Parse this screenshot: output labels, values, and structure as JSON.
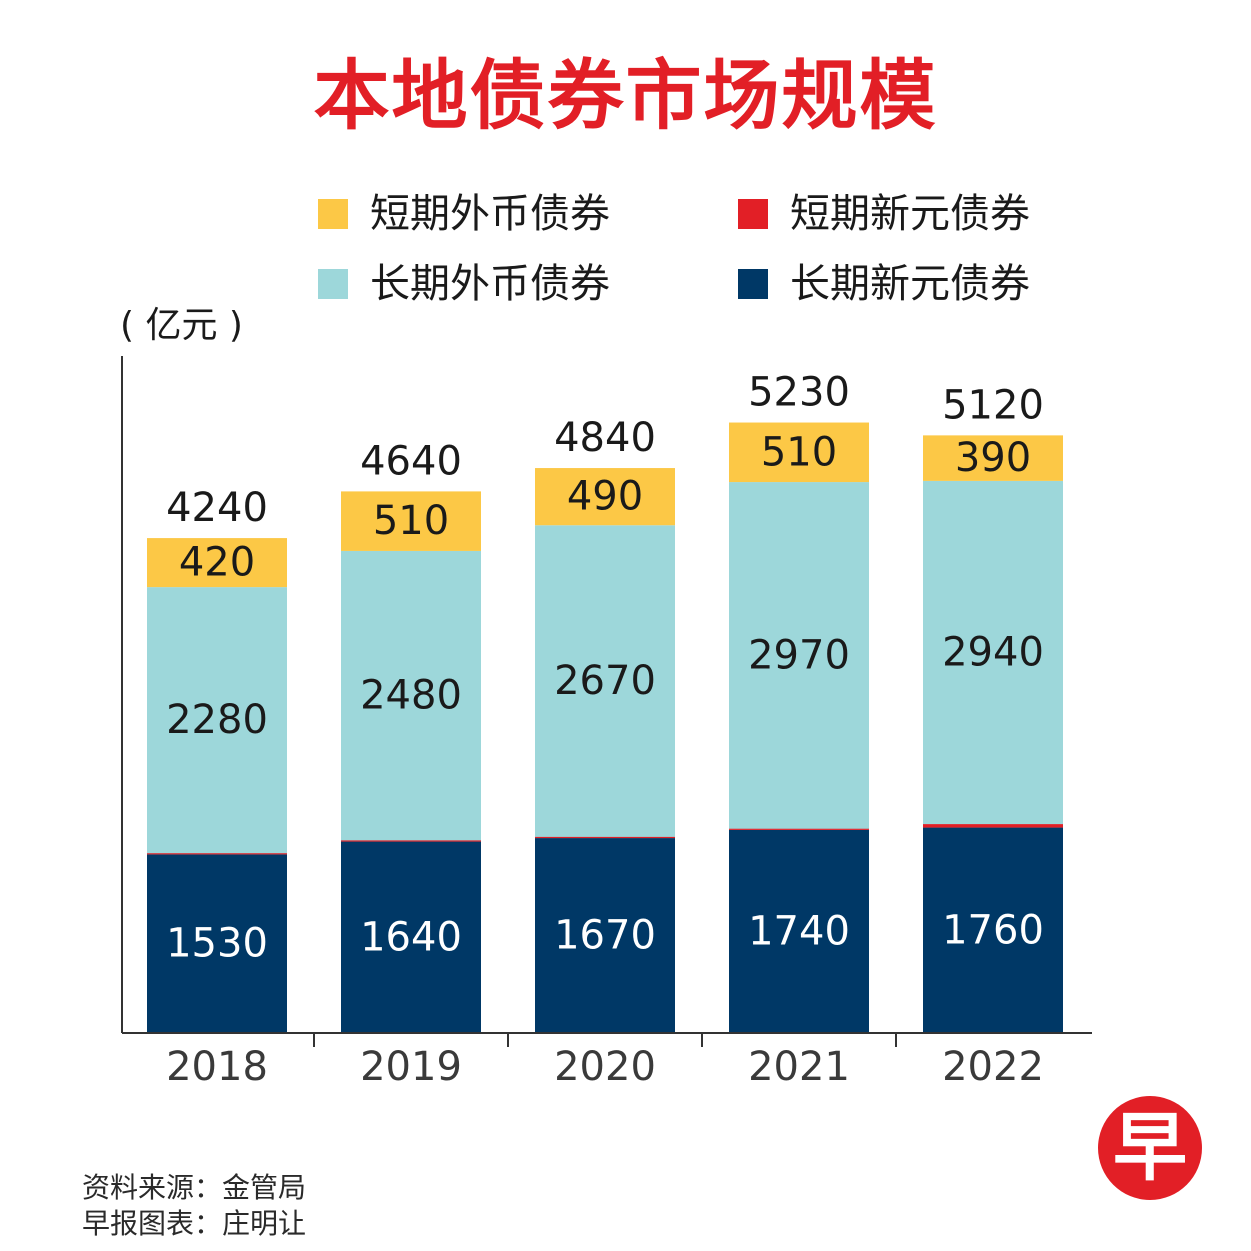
{
  "title": "本地债券市场规模",
  "legend": [
    {
      "label": "短期外币债券",
      "color": "#fcc846"
    },
    {
      "label": "短期新元债券",
      "color": "#e21f26"
    },
    {
      "label": "长期外币债券",
      "color": "#9dd7da"
    },
    {
      "label": "长期新元债券",
      "color": "#003866"
    }
  ],
  "unit_label": "( 亿元 )",
  "chart_data": {
    "type": "bar",
    "stacked": true,
    "categories": [
      "2018",
      "2019",
      "2020",
      "2021",
      "2022"
    ],
    "series": [
      {
        "name": "长期新元债券",
        "color": "#003866",
        "values": [
          1530,
          1640,
          1670,
          1740,
          1760
        ],
        "show_labels": true
      },
      {
        "name": "短期新元债券",
        "color": "#e21f26",
        "values": [
          10,
          10,
          10,
          10,
          30
        ],
        "show_labels": false
      },
      {
        "name": "长期外币债券",
        "color": "#9dd7da",
        "values": [
          2280,
          2480,
          2670,
          2970,
          2940
        ],
        "show_labels": true
      },
      {
        "name": "短期外币债券",
        "color": "#fcc846",
        "values": [
          420,
          510,
          490,
          510,
          390
        ],
        "show_labels": true
      }
    ],
    "totals": [
      4240,
      4640,
      4840,
      5230,
      5120
    ],
    "ylim": [
      0,
      5800
    ],
    "grid": false
  },
  "source": "资料来源：金管局",
  "credit": "早报图表：庄明让",
  "logo_text": "早"
}
